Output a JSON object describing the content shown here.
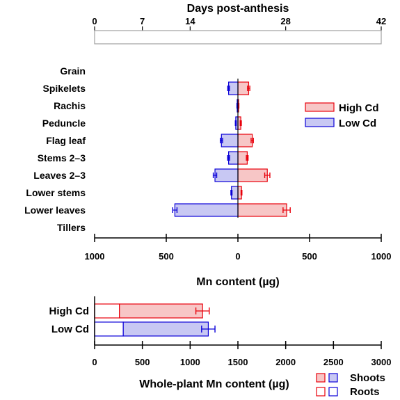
{
  "chart_data": [
    {
      "type": "bar",
      "xlabel": "Days post-anthesis",
      "x_ticks": [
        0,
        7,
        14,
        28,
        42
      ],
      "xlim": [
        0,
        42
      ],
      "values": []
    },
    {
      "type": "bar",
      "orientation": "horizontal-diverging",
      "xlabel": "Mn content (µg)",
      "x_ticks": [
        1000,
        500,
        0,
        500,
        1000
      ],
      "xlim": [
        -1000,
        1000
      ],
      "categories": [
        "Grain",
        "Spikelets",
        "Rachis",
        "Peduncle",
        "Flag leaf",
        "Stems 2–3",
        "Leaves 2–3",
        "Lower stems",
        "Lower leaves",
        "Tillers"
      ],
      "series": [
        {
          "name": "High Cd",
          "color": "#e8000b",
          "fill": "#f7c6c6",
          "values": [
            0,
            75,
            5,
            20,
            100,
            65,
            205,
            25,
            340,
            0
          ],
          "errors": [
            0,
            8,
            2,
            4,
            8,
            6,
            18,
            3,
            25,
            0
          ]
        },
        {
          "name": "Low Cd",
          "color": "#0a00d8",
          "fill": "#c8c8f3",
          "values": [
            0,
            65,
            5,
            15,
            115,
            65,
            160,
            45,
            440,
            0
          ],
          "errors": [
            0,
            6,
            2,
            3,
            8,
            7,
            12,
            4,
            15,
            0
          ]
        }
      ],
      "legend": {
        "placement": "right",
        "entries": [
          "High Cd",
          "Low Cd"
        ]
      }
    },
    {
      "type": "bar",
      "orientation": "horizontal-stacked",
      "xlabel": "Whole-plant Mn content (µg)",
      "x_ticks": [
        0,
        500,
        1000,
        1500,
        2000,
        2500,
        3000
      ],
      "xlim": [
        0,
        3000
      ],
      "categories": [
        "High Cd",
        "Low Cd"
      ],
      "category_colors": [
        "#e8000b",
        "#0a00d8"
      ],
      "category_fills": [
        "#f7c6c6",
        "#c8c8f3"
      ],
      "series": [
        {
          "name": "Roots",
          "values": [
            260,
            300
          ]
        },
        {
          "name": "Shoots",
          "values": [
            870,
            890
          ]
        }
      ],
      "total_errors": [
        70,
        70
      ],
      "legend": {
        "placement": "bottom-right",
        "entries": [
          "Shoots",
          "Roots"
        ]
      }
    }
  ]
}
